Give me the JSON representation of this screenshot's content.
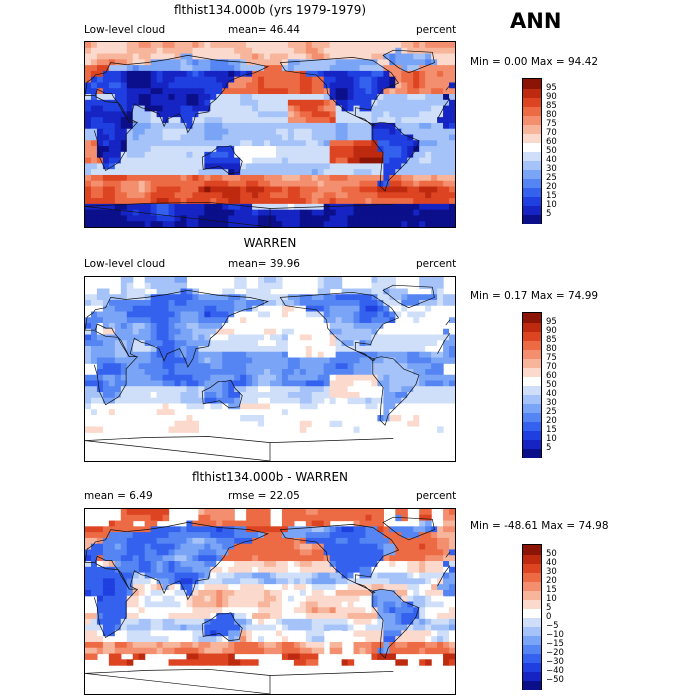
{
  "page": {
    "ann_label": "ANN"
  },
  "chart_data": [
    {
      "type": "heatmap",
      "title": "flthist134.000b (yrs 1979-1979)",
      "left_label": "Low-level cloud",
      "center_label": "mean=  46.44",
      "right_label": "percent",
      "minmax_label": "Min =    0.00 Max =  94.42",
      "mean": 46.44,
      "min": 0.0,
      "max": 94.42,
      "colorbar": {
        "levels": [
          "5",
          "10",
          "15",
          "20",
          "25",
          "30",
          "40",
          "50",
          "60",
          "70",
          "75",
          "80",
          "85",
          "90",
          "95"
        ],
        "colors": [
          "#0b0f8a",
          "#1524c2",
          "#1f3fe0",
          "#3461ee",
          "#5585f3",
          "#7aa4f6",
          "#a5c3f8",
          "#cfdffa",
          "#ffffff",
          "#fbd9cc",
          "#f7b59c",
          "#f38f6e",
          "#ec6a44",
          "#dc4422",
          "#bd2a0f",
          "#8c1405"
        ]
      }
    },
    {
      "type": "heatmap",
      "title": "WARREN",
      "left_label": "Low-level cloud",
      "center_label": "mean=  39.96",
      "right_label": "percent",
      "minmax_label": "Min =    0.17 Max =  74.99",
      "mean": 39.96,
      "min": 0.17,
      "max": 74.99,
      "colorbar": {
        "levels": [
          "5",
          "10",
          "15",
          "20",
          "25",
          "30",
          "40",
          "50",
          "60",
          "70",
          "75",
          "80",
          "85",
          "90",
          "95"
        ],
        "colors": [
          "#0b0f8a",
          "#1524c2",
          "#1f3fe0",
          "#3461ee",
          "#5585f3",
          "#7aa4f6",
          "#a5c3f8",
          "#cfdffa",
          "#ffffff",
          "#fbd9cc",
          "#f7b59c",
          "#f38f6e",
          "#ec6a44",
          "#dc4422",
          "#bd2a0f",
          "#8c1405"
        ]
      }
    },
    {
      "type": "heatmap",
      "title": "flthist134.000b - WARREN",
      "left_label": "mean =    6.49",
      "center_label": "rmse =  22.05",
      "right_label": "percent",
      "minmax_label": "Min =  -48.61 Max =  74.98",
      "mean": 6.49,
      "rmse": 22.05,
      "min": -48.61,
      "max": 74.98,
      "colorbar": {
        "levels": [
          "−50",
          "−40",
          "−30",
          "−20",
          "−15",
          "−10",
          "−5",
          "0",
          "5",
          "10",
          "15",
          "20",
          "30",
          "40",
          "50"
        ],
        "colors": [
          "#0b0f8a",
          "#1524c2",
          "#1f3fe0",
          "#3461ee",
          "#5585f3",
          "#7aa4f6",
          "#a5c3f8",
          "#cfdffa",
          "#ffffff",
          "#fbd9cc",
          "#f7b59c",
          "#f38f6e",
          "#ec6a44",
          "#dc4422",
          "#bd2a0f",
          "#8c1405"
        ]
      }
    }
  ]
}
